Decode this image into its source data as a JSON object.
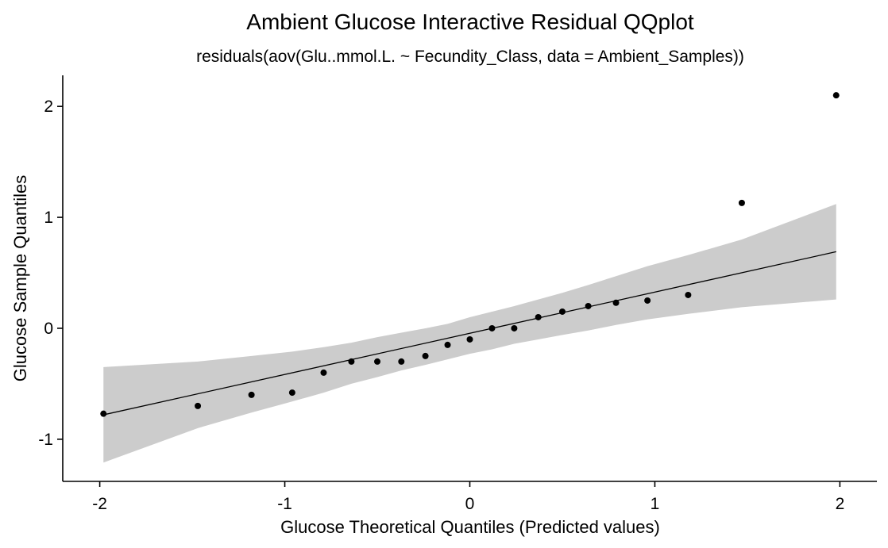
{
  "chart_data": {
    "type": "scatter",
    "title": "Ambient Glucose Interactive Residual QQplot",
    "subtitle": "residuals(aov(Glu..mmol.L. ~ Fecundity_Class, data = Ambient_Samples))",
    "xlabel": "Glucose Theoretical Quantiles (Predicted values)",
    "ylabel": "Glucose Sample Quantiles",
    "xlim": [
      -2.2,
      2.2
    ],
    "ylim": [
      -1.38,
      2.28
    ],
    "xticks": [
      -2,
      -1,
      0,
      1,
      2
    ],
    "xtick_labels": [
      "-2",
      "-1",
      "0",
      "1",
      "2"
    ],
    "yticks": [
      -1,
      0,
      1,
      2
    ],
    "ytick_labels": [
      "-1",
      "0",
      "1",
      "2"
    ],
    "grid": false,
    "points": [
      {
        "x": -1.98,
        "y": -0.77
      },
      {
        "x": -1.47,
        "y": -0.7
      },
      {
        "x": -1.18,
        "y": -0.6
      },
      {
        "x": -0.96,
        "y": -0.58
      },
      {
        "x": -0.79,
        "y": -0.4
      },
      {
        "x": -0.64,
        "y": -0.3
      },
      {
        "x": -0.5,
        "y": -0.3
      },
      {
        "x": -0.37,
        "y": -0.3
      },
      {
        "x": -0.24,
        "y": -0.25
      },
      {
        "x": -0.12,
        "y": -0.15
      },
      {
        "x": 0.0,
        "y": -0.1
      },
      {
        "x": 0.12,
        "y": 0.0
      },
      {
        "x": 0.24,
        "y": 0.0
      },
      {
        "x": 0.37,
        "y": 0.1
      },
      {
        "x": 0.5,
        "y": 0.15
      },
      {
        "x": 0.64,
        "y": 0.2
      },
      {
        "x": 0.79,
        "y": 0.23
      },
      {
        "x": 0.96,
        "y": 0.25
      },
      {
        "x": 1.18,
        "y": 0.3
      },
      {
        "x": 1.47,
        "y": 1.13
      },
      {
        "x": 1.98,
        "y": 2.1
      }
    ],
    "reference_line": [
      {
        "x": -1.98,
        "y": -0.78
      },
      {
        "x": 1.98,
        "y": 0.69
      }
    ],
    "confidence_band": [
      {
        "x": -1.98,
        "lower": -1.21,
        "upper": -0.35
      },
      {
        "x": -1.47,
        "lower": -0.9,
        "upper": -0.3
      },
      {
        "x": -1.18,
        "lower": -0.76,
        "upper": -0.25
      },
      {
        "x": -0.96,
        "lower": -0.66,
        "upper": -0.21
      },
      {
        "x": -0.79,
        "lower": -0.58,
        "upper": -0.17
      },
      {
        "x": -0.64,
        "lower": -0.5,
        "upper": -0.13
      },
      {
        "x": -0.5,
        "lower": -0.44,
        "upper": -0.08
      },
      {
        "x": -0.37,
        "lower": -0.38,
        "upper": -0.04
      },
      {
        "x": -0.24,
        "lower": -0.33,
        "upper": 0.0
      },
      {
        "x": -0.12,
        "lower": -0.28,
        "upper": 0.04
      },
      {
        "x": 0.0,
        "lower": -0.23,
        "upper": 0.1
      },
      {
        "x": 0.12,
        "lower": -0.19,
        "upper": 0.15
      },
      {
        "x": 0.24,
        "lower": -0.14,
        "upper": 0.2
      },
      {
        "x": 0.37,
        "lower": -0.1,
        "upper": 0.26
      },
      {
        "x": 0.5,
        "lower": -0.06,
        "upper": 0.32
      },
      {
        "x": 0.64,
        "lower": -0.02,
        "upper": 0.39
      },
      {
        "x": 0.79,
        "lower": 0.03,
        "upper": 0.47
      },
      {
        "x": 0.96,
        "lower": 0.08,
        "upper": 0.56
      },
      {
        "x": 1.18,
        "lower": 0.13,
        "upper": 0.66
      },
      {
        "x": 1.47,
        "lower": 0.19,
        "upper": 0.8
      },
      {
        "x": 1.98,
        "lower": 0.26,
        "upper": 1.12
      }
    ],
    "colors": {
      "points": "#000000",
      "line": "#000000",
      "band": "#cccccc",
      "axis": "#000000"
    }
  }
}
